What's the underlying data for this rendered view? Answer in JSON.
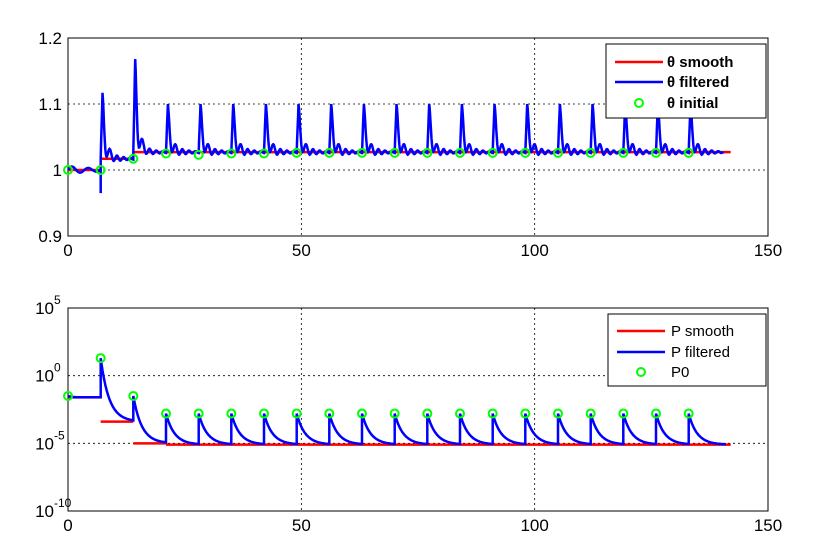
{
  "chart_data": [
    {
      "type": "line",
      "xlim": [
        0,
        150
      ],
      "ylim": [
        0.9,
        1.2
      ],
      "x_ticks": [
        "0",
        "50",
        "100",
        "150"
      ],
      "y_ticks": [
        "0.9",
        "1",
        "1.1",
        "1.2"
      ],
      "grid": true,
      "legend_position": "top-right",
      "legend": [
        "θ smooth",
        "θ filtered",
        "θ initial"
      ],
      "series": [
        {
          "name": "θ smooth",
          "color": "#ff0000",
          "steps": [
            [
              0,
              7,
              1.0
            ],
            [
              7,
              14,
              1.017
            ],
            [
              14,
              142,
              1.027
            ]
          ]
        },
        {
          "name": "θ filtered",
          "color": "#0000ff",
          "initial_spike": 1.168,
          "periodic_peak": 1.1,
          "baseline": 1.027
        },
        {
          "name": "θ initial",
          "color": "#00ff00",
          "x": [
            0,
            7,
            14,
            21,
            28,
            35,
            42,
            49,
            56,
            63,
            70,
            77,
            84,
            91,
            98,
            105,
            112,
            119,
            126,
            133
          ],
          "y": [
            1.0,
            1.0,
            1.017,
            1.025,
            1.023,
            1.025,
            1.025,
            1.026,
            1.026,
            1.026,
            1.026,
            1.026,
            1.026,
            1.026,
            1.026,
            1.026,
            1.026,
            1.026,
            1.026,
            1.026
          ]
        }
      ]
    },
    {
      "type": "line",
      "xlim": [
        0,
        150
      ],
      "ylim": [
        -10,
        5
      ],
      "y_scale": "log",
      "x_ticks": [
        "0",
        "50",
        "100",
        "150"
      ],
      "y_ticks": [
        {
          "base": "10",
          "exp": "5"
        },
        {
          "base": "10",
          "exp": "0"
        },
        {
          "base": "10",
          "exp": "-5"
        },
        {
          "base": "10",
          "exp": "-10"
        }
      ],
      "grid": true,
      "legend_position": "top-right",
      "legend": [
        "P smooth",
        "P filtered",
        "P0"
      ],
      "series": [
        {
          "name": "P smooth",
          "color": "#ff0000",
          "steps": [
            [
              0,
              7,
              -1.6
            ],
            [
              7,
              14,
              -3.4
            ],
            [
              14,
              21,
              -5.0
            ],
            [
              21,
              142,
              -5.1
            ]
          ]
        },
        {
          "name": "P filtered",
          "color": "#0000ff",
          "decay_to": -5.1
        },
        {
          "name": "P0",
          "color": "#00ff00",
          "x": [
            0,
            7,
            14,
            21,
            28,
            35,
            42,
            49,
            56,
            63,
            70,
            77,
            84,
            91,
            98,
            105,
            112,
            119,
            126,
            133
          ],
          "y": [
            -1.5,
            1.3,
            -1.5,
            -2.8,
            -2.8,
            -2.8,
            -2.8,
            -2.8,
            -2.8,
            -2.8,
            -2.8,
            -2.8,
            -2.8,
            -2.8,
            -2.8,
            -2.8,
            -2.8,
            -2.8,
            -2.8,
            -2.8
          ]
        }
      ]
    }
  ]
}
